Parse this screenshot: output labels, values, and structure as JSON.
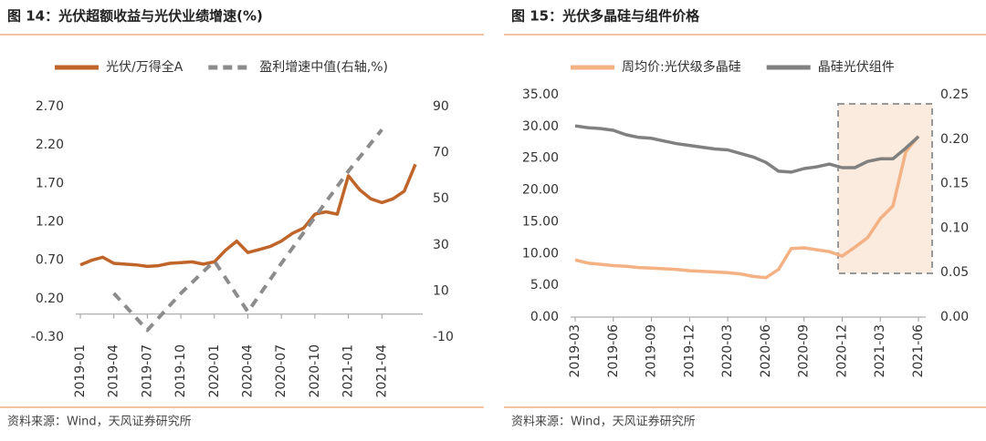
{
  "chart_data": [
    {
      "type": "line",
      "title": "图 14：光伏超额收益与光伏业绩增速(%)",
      "source": "资料来源：Wind，天风证券研究所",
      "x": [
        "2019-01",
        "2019-02",
        "2019-03",
        "2019-04",
        "2019-05",
        "2019-06",
        "2019-07",
        "2019-08",
        "2019-09",
        "2019-10",
        "2019-11",
        "2019-12",
        "2020-01",
        "2020-02",
        "2020-03",
        "2020-04",
        "2020-05",
        "2020-06",
        "2020-07",
        "2020-08",
        "2020-09",
        "2020-10",
        "2020-11",
        "2020-12",
        "2021-01",
        "2021-02",
        "2021-03",
        "2021-04",
        "2021-05",
        "2021-06",
        "2021-07"
      ],
      "xticks": [
        "2019-01",
        "2019-04",
        "2019-07",
        "2019-10",
        "2020-01",
        "2020-04",
        "2020-07",
        "2020-10",
        "2021-01",
        "2021-04"
      ],
      "series": [
        {
          "name": "光伏/万得全A",
          "color": "#c0652a",
          "values": [
            0.64,
            0.7,
            0.74,
            0.66,
            0.65,
            0.64,
            0.62,
            0.63,
            0.66,
            0.67,
            0.68,
            0.65,
            0.68,
            0.83,
            0.95,
            0.8,
            0.84,
            0.88,
            0.95,
            1.05,
            1.12,
            1.3,
            1.33,
            1.3,
            1.8,
            1.62,
            1.5,
            1.45,
            1.5,
            1.6,
            1.95
          ]
        },
        {
          "name": "盈利增速中值(右轴,%)",
          "color": "#8c8c8c",
          "dashed": true,
          "axis": "y2",
          "x": [
            "2019-04",
            "2019-07",
            "2019-10",
            "2020-01",
            "2020-04",
            "2020-07",
            "2020-10",
            "2021-01",
            "2021-04"
          ],
          "values": [
            9,
            -7,
            9,
            23,
            1,
            22,
            42,
            62,
            80
          ]
        }
      ],
      "ylim": [
        -0.3,
        2.7
      ],
      "yticks": [
        {
          "value": -0.3,
          "label": "-0.30"
        },
        {
          "value": 0.2,
          "label": "0.20"
        },
        {
          "value": 0.7,
          "label": "0.70"
        },
        {
          "value": 1.2,
          "label": "1.20"
        },
        {
          "value": 1.7,
          "label": "1.70"
        },
        {
          "value": 2.2,
          "label": "2.20"
        },
        {
          "value": 2.7,
          "label": "2.70"
        }
      ],
      "y2lim": [
        -10,
        90
      ],
      "y2ticks": [
        -10,
        10,
        30,
        50,
        70,
        90
      ]
    },
    {
      "type": "line",
      "title": "图 15：光伏多晶硅与组件价格",
      "source": "资料来源：Wind，天风证券研究所",
      "x": [
        "2019-03",
        "2019-04",
        "2019-05",
        "2019-06",
        "2019-07",
        "2019-08",
        "2019-09",
        "2019-10",
        "2019-11",
        "2019-12",
        "2020-01",
        "2020-02",
        "2020-03",
        "2020-04",
        "2020-05",
        "2020-06",
        "2020-07",
        "2020-08",
        "2020-09",
        "2020-10",
        "2020-11",
        "2020-12",
        "2021-01",
        "2021-02",
        "2021-03",
        "2021-04",
        "2021-05",
        "2021-06"
      ],
      "xticks": [
        "2019-03",
        "2019-06",
        "2019-09",
        "2019-12",
        "2020-03",
        "2020-06",
        "2020-09",
        "2020-12",
        "2021-03",
        "2021-06"
      ],
      "series": [
        {
          "name": "周均价:光伏级多晶硅",
          "color": "#f4b183",
          "values": [
            9.0,
            8.5,
            8.3,
            8.1,
            8.0,
            7.8,
            7.7,
            7.6,
            7.5,
            7.3,
            7.2,
            7.1,
            7.0,
            6.8,
            6.4,
            6.2,
            7.5,
            10.8,
            10.9,
            10.6,
            10.3,
            9.6,
            11.0,
            12.5,
            15.5,
            17.5,
            26.0,
            28.5
          ]
        },
        {
          "name": "晶硅光伏组件",
          "color": "#808080",
          "axis": "y2",
          "values": [
            0.215,
            0.213,
            0.212,
            0.21,
            0.205,
            0.202,
            0.201,
            0.198,
            0.195,
            0.193,
            0.191,
            0.189,
            0.188,
            0.184,
            0.18,
            0.174,
            0.164,
            0.163,
            0.167,
            0.169,
            0.172,
            0.168,
            0.168,
            0.175,
            0.178,
            0.178,
            0.19,
            0.203
          ]
        }
      ],
      "ylim": [
        0,
        35
      ],
      "yticks": [
        {
          "value": 0,
          "label": "0.00"
        },
        {
          "value": 5,
          "label": "5.00"
        },
        {
          "value": 10,
          "label": "10.00"
        },
        {
          "value": 15,
          "label": "15.00"
        },
        {
          "value": 20,
          "label": "20.00"
        },
        {
          "value": 25,
          "label": "25.00"
        },
        {
          "value": 30,
          "label": "30.00"
        },
        {
          "value": 35,
          "label": "35.00"
        }
      ],
      "y2lim": [
        0,
        0.25
      ],
      "y2ticks": [
        {
          "value": 0,
          "label": "0.00"
        },
        {
          "value": 0.05,
          "label": "0.05"
        },
        {
          "value": 0.1,
          "label": "0.10"
        },
        {
          "value": 0.15,
          "label": "0.15"
        },
        {
          "value": 0.2,
          "label": "0.20"
        },
        {
          "value": 0.25,
          "label": "0.25"
        }
      ]
    }
  ]
}
